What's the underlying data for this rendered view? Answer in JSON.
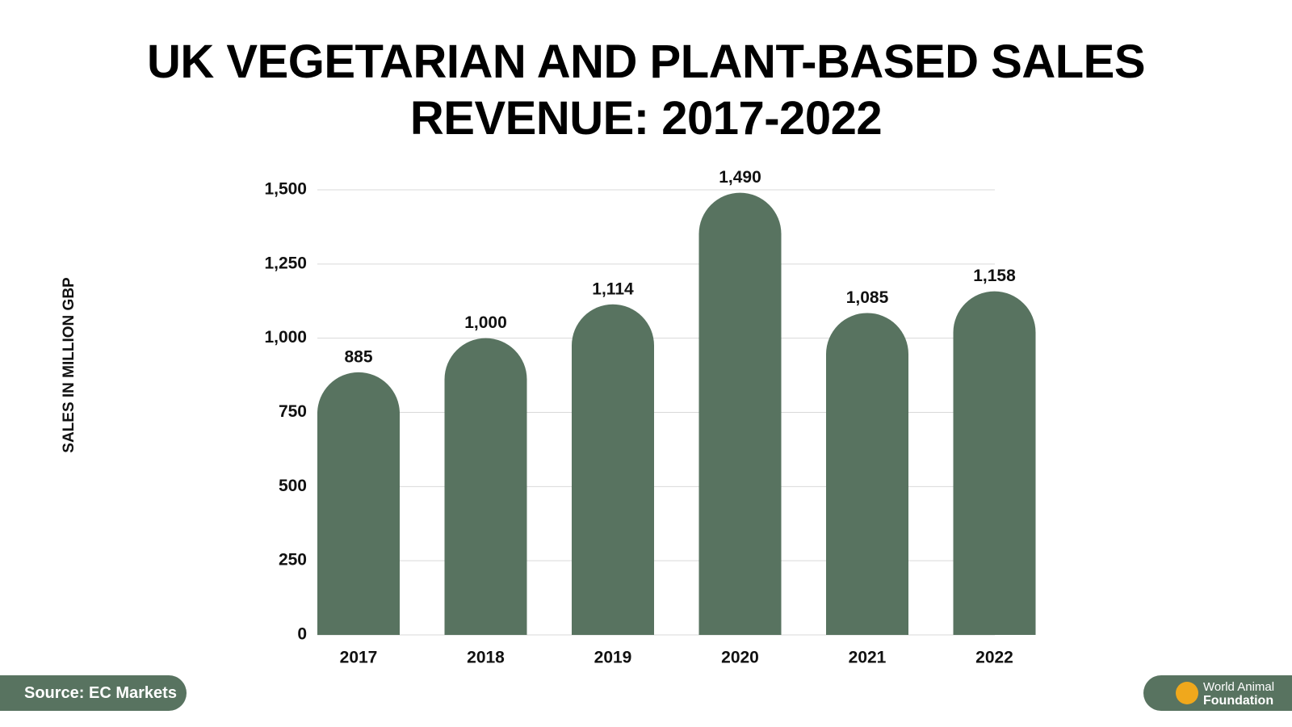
{
  "chart_data": {
    "type": "bar",
    "title": "UK VEGETARIAN AND PLANT-BASED SALES REVENUE: 2017-2022",
    "y_label": "SALES IN MILLION GBP",
    "categories": [
      "2017",
      "2018",
      "2019",
      "2020",
      "2021",
      "2022"
    ],
    "values": [
      885,
      1000,
      1114,
      1490,
      1085,
      1158
    ],
    "value_labels": [
      "885",
      "1,000",
      "1,114",
      "1,490",
      "1,085",
      "1,158"
    ],
    "color": "#587360",
    "ylim": [
      0,
      1500
    ],
    "yticks": [
      0,
      250,
      500,
      750,
      {
        "value": 1000,
        "label": "1,000"
      },
      {
        "value": 1250,
        "label": "1,250"
      },
      {
        "value": 1500,
        "label": "1,500"
      }
    ],
    "grid": true
  },
  "source": "Source: EC Markets",
  "logo": {
    "line1": "World Animal",
    "line2": "Foundation"
  }
}
